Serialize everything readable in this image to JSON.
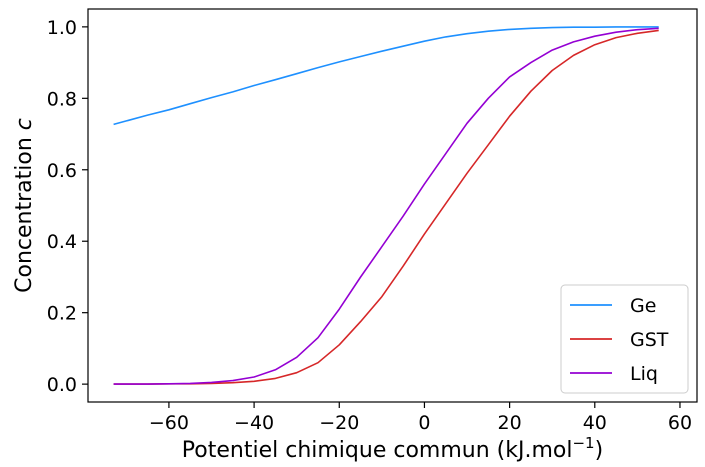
{
  "chart_data": {
    "type": "line",
    "title": "",
    "xlabel": "Potentiel chimique commun (kJ.mol",
    "xlabel_superscript": "−1",
    "xlabel_suffix": ")",
    "ylabel_prefix": "Concentration ",
    "ylabel_var": "c",
    "xlim": [
      -79,
      64
    ],
    "ylim": [
      -0.05,
      1.05
    ],
    "xticks": [
      -60,
      -40,
      -20,
      0,
      20,
      40,
      60
    ],
    "xtick_labels": [
      "−60",
      "−40",
      "−20",
      "0",
      "20",
      "40",
      "60"
    ],
    "yticks": [
      0.0,
      0.2,
      0.4,
      0.6,
      0.8,
      1.0
    ],
    "ytick_labels": [
      "0.0",
      "0.2",
      "0.4",
      "0.6",
      "0.8",
      "1.0"
    ],
    "grid": false,
    "legend_position": "lower-right",
    "x": [
      -73,
      -65,
      -60,
      -55,
      -50,
      -45,
      -40,
      -35,
      -30,
      -25,
      -20,
      -15,
      -10,
      -5,
      0,
      5,
      10,
      15,
      20,
      25,
      30,
      35,
      40,
      45,
      50,
      55
    ],
    "series": [
      {
        "name": "Ge",
        "color": "#1e90ff",
        "values": [
          0.727,
          0.753,
          0.768,
          0.785,
          0.802,
          0.818,
          0.836,
          0.852,
          0.869,
          0.886,
          0.902,
          0.917,
          0.932,
          0.946,
          0.96,
          0.972,
          0.981,
          0.988,
          0.993,
          0.996,
          0.998,
          0.999,
          0.999,
          1.0,
          1.0,
          1.0
        ]
      },
      {
        "name": "GST",
        "color": "#d62728",
        "values": [
          0.0,
          0.0,
          0.001,
          0.001,
          0.002,
          0.004,
          0.008,
          0.016,
          0.032,
          0.06,
          0.11,
          0.175,
          0.245,
          0.33,
          0.42,
          0.505,
          0.59,
          0.67,
          0.75,
          0.82,
          0.878,
          0.92,
          0.95,
          0.97,
          0.982,
          0.99
        ]
      },
      {
        "name": "Liq",
        "color": "#9400d3",
        "values": [
          0.0,
          0.0,
          0.001,
          0.002,
          0.005,
          0.01,
          0.02,
          0.04,
          0.075,
          0.13,
          0.21,
          0.3,
          0.385,
          0.47,
          0.56,
          0.645,
          0.73,
          0.8,
          0.86,
          0.9,
          0.935,
          0.958,
          0.974,
          0.985,
          0.992,
          0.996
        ]
      }
    ]
  }
}
